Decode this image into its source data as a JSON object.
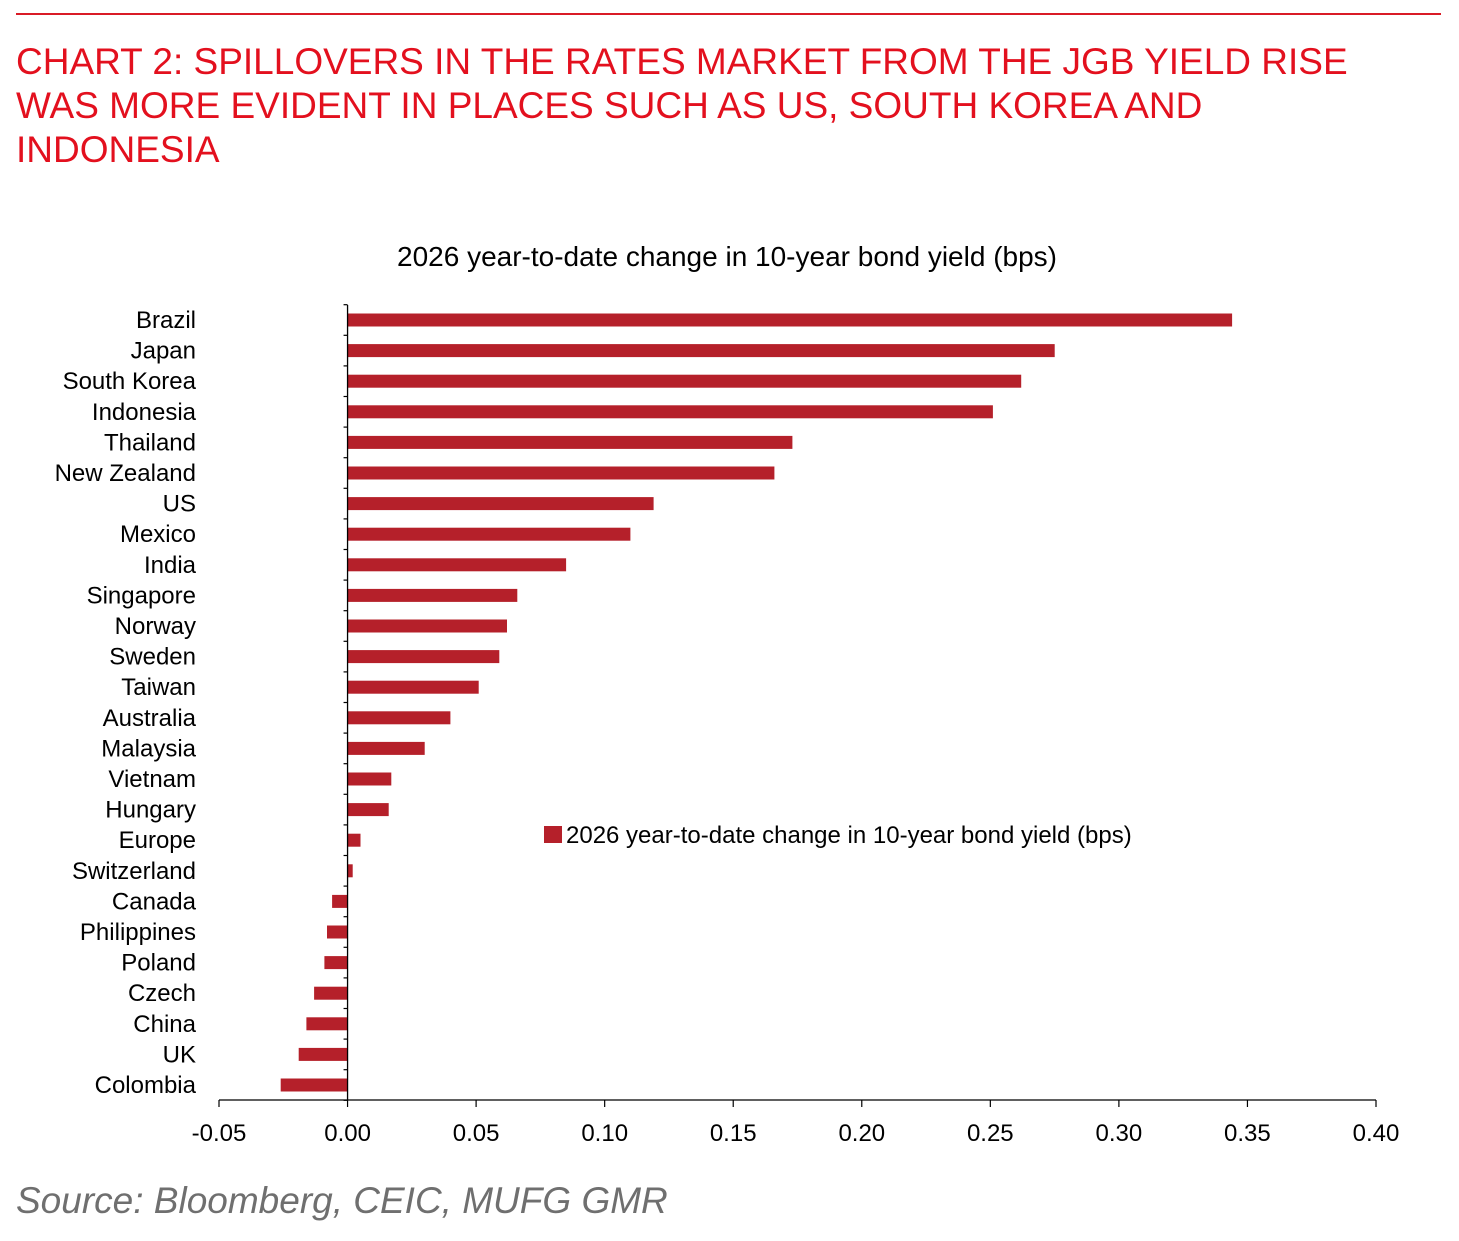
{
  "header": {
    "title_lines": [
      "CHART 2: SPILLOVERS IN THE RATES MARKET FROM THE JGB YIELD RISE",
      "WAS MORE EVIDENT IN PLACES SUCH AS US, SOUTH KOREA AND",
      "INDONESIA"
    ]
  },
  "footer": {
    "source": "Source: Bloomberg, CEIC, MUFG GMR"
  },
  "colors": {
    "accent": "#e3101e",
    "bar": "#b5202a",
    "source": "#6f6f6f"
  },
  "chart_data": {
    "type": "bar",
    "orientation": "horizontal",
    "title": "2026 year-to-date change in 10-year bond yield (bps)",
    "xlabel": "",
    "ylabel": "",
    "xlim": [
      -0.05,
      0.4
    ],
    "xticks": [
      -0.05,
      0.0,
      0.05,
      0.1,
      0.15,
      0.2,
      0.25,
      0.3,
      0.35,
      0.4
    ],
    "xtick_labels": [
      "-0.05",
      "0.00",
      "0.05",
      "0.10",
      "0.15",
      "0.20",
      "0.25",
      "0.30",
      "0.35",
      "0.40"
    ],
    "grid": false,
    "legend_position": "center-right",
    "categories": [
      "Brazil",
      "Japan",
      "South Korea",
      "Indonesia",
      "Thailand",
      "New Zealand",
      "US",
      "Mexico",
      "India",
      "Singapore",
      "Norway",
      "Sweden",
      "Taiwan",
      "Australia",
      "Malaysia",
      "Vietnam",
      "Hungary",
      "Europe",
      "Switzerland",
      "Canada",
      "Philippines",
      "Poland",
      "Czech",
      "China",
      "UK",
      "Colombia"
    ],
    "series": [
      {
        "name": "2026 year-to-date change in 10-year bond yield (bps)",
        "values": [
          0.344,
          0.275,
          0.262,
          0.251,
          0.173,
          0.166,
          0.119,
          0.11,
          0.085,
          0.066,
          0.062,
          0.059,
          0.051,
          0.04,
          0.03,
          0.017,
          0.016,
          0.005,
          0.002,
          -0.006,
          -0.008,
          -0.009,
          -0.013,
          -0.016,
          -0.019,
          -0.026
        ]
      }
    ]
  }
}
